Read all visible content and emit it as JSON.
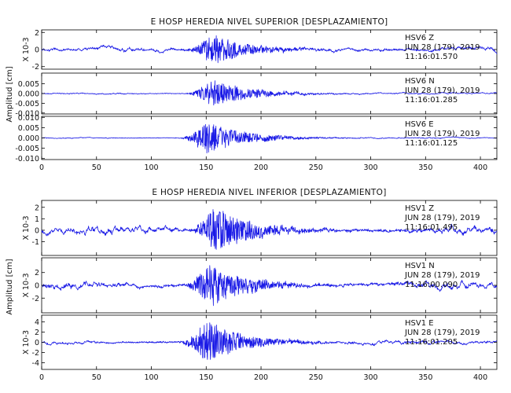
{
  "colors": {
    "trace": "#1a1ae6",
    "axes": "#000000",
    "background": "#ffffff"
  },
  "chart_data": [
    {
      "type": "line",
      "title": "E HOSP HEREDIA NIVEL SUPERIOR [DESPLAZAMIENTO]",
      "xlim": [
        0,
        415
      ],
      "xticks": [
        "0",
        "50",
        "100",
        "150",
        "200",
        "250",
        "300",
        "350",
        "400"
      ],
      "ylabel": "Amplitud [cm]",
      "channels": [
        {
          "label": "HSV6 Z",
          "date": "JUN 28 (179), 2019",
          "time": "11:16:01.570",
          "scale_label": "X 10-3",
          "ylim": [
            -2.3,
            2.3
          ],
          "yticks": [
            "2",
            "0",
            "-2"
          ],
          "rms_amplitude": 0.45,
          "peak_amplitude": 2.1,
          "peak_time_s": 158
        },
        {
          "label": "HSV6 N",
          "date": "JUN 28 (179), 2019",
          "time": "11:16:01.285",
          "scale_label": "",
          "ylim": [
            -0.0105,
            0.0105
          ],
          "yticks": [
            "0.005",
            "0.000",
            "-0.005",
            "-0.010"
          ],
          "rms_amplitude": 0.0008,
          "peak_amplitude": 0.0085,
          "peak_time_s": 158
        },
        {
          "label": "HSV6 E",
          "date": "JUN 28 (179), 2019",
          "time": "11:16:01.125",
          "scale_label": "",
          "ylim": [
            -0.0105,
            0.0105
          ],
          "yticks": [
            "0.010",
            "0.005",
            "0.000",
            "-0.005",
            "-0.010"
          ],
          "rms_amplitude": 0.0006,
          "peak_amplitude": 0.0095,
          "peak_time_s": 153
        }
      ]
    },
    {
      "type": "line",
      "title": "E HOSP HEREDIA NIVEL INFERIOR [DESPLAZAMIENTO]",
      "xlim": [
        0,
        415
      ],
      "xticks": [
        "0",
        "50",
        "100",
        "150",
        "200",
        "250",
        "300",
        "350",
        "400"
      ],
      "ylabel": "Amplitud [cm]",
      "channels": [
        {
          "label": "HSV1 Z",
          "date": "JUN 28 (179), 2019",
          "time": "11:16:01.495",
          "scale_label": "X 10-3",
          "ylim": [
            -2.2,
            2.6
          ],
          "yticks": [
            "2",
            "1",
            "0",
            "-1"
          ],
          "rms_amplitude": 0.55,
          "peak_amplitude": 2.3,
          "peak_time_s": 160
        },
        {
          "label": "HSV1 N",
          "date": "JUN 28 (179), 2019",
          "time": "11:16:00.090",
          "scale_label": "X 10-3",
          "ylim": [
            -4.3,
            4.3
          ],
          "yticks": [
            "2",
            "0",
            "-2"
          ],
          "rms_amplitude": 0.9,
          "peak_amplitude": 4.0,
          "peak_time_s": 155
        },
        {
          "label": "HSV1 E",
          "date": "JUN 28 (179), 2019",
          "time": "11:16:01.205",
          "scale_label": "X 10-3",
          "ylim": [
            -5.3,
            5.3
          ],
          "yticks": [
            "4",
            "2",
            "0",
            "-2",
            "-4"
          ],
          "rms_amplitude": 0.7,
          "peak_amplitude": 5.0,
          "peak_time_s": 152
        }
      ]
    }
  ]
}
